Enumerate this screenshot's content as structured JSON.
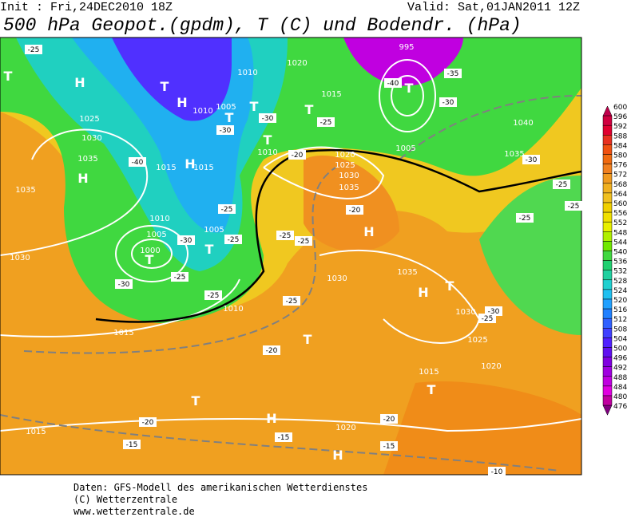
{
  "header": {
    "init": "Init : Fri,24DEC2010 18Z",
    "valid": "Valid: Sat,01JAN2011 12Z",
    "title": "500 hPa Geopot.(gpdm), T (C) und Bodendr. (hPa)"
  },
  "legend": {
    "levels": [
      600,
      596,
      592,
      588,
      584,
      580,
      576,
      572,
      568,
      564,
      560,
      556,
      552,
      548,
      544,
      540,
      536,
      532,
      528,
      524,
      520,
      516,
      512,
      508,
      504,
      500,
      496,
      492,
      488,
      484,
      480,
      476
    ],
    "colors": [
      "#c0004c",
      "#d00040",
      "#e00030",
      "#e83020",
      "#f05010",
      "#f06a10",
      "#f08020",
      "#f09a20",
      "#f0b020",
      "#f0c020",
      "#f0d000",
      "#f0e000",
      "#e8f000",
      "#b0f000",
      "#70e800",
      "#40d840",
      "#20d070",
      "#20d0a0",
      "#20d0d0",
      "#20c0f0",
      "#20a0ff",
      "#2080ff",
      "#3060ff",
      "#4040ff",
      "#5020ff",
      "#6010f0",
      "#8000e0",
      "#a000e0",
      "#c000e0",
      "#e000e0",
      "#c000a0",
      "#800080"
    ]
  },
  "map": {
    "centers": [
      "T",
      "H",
      "T",
      "H",
      "T",
      "T",
      "T",
      "T",
      "T",
      "H",
      "H",
      "T",
      "H",
      "H",
      "T",
      "T",
      "T",
      "T",
      "H",
      "H",
      "T"
    ],
    "isobars": [
      "1020",
      "1010",
      "1015",
      "1005",
      "1010",
      "1025",
      "1030",
      "1035",
      "1015",
      "1015",
      "1010",
      "1020",
      "1025",
      "1030",
      "1035",
      "1010",
      "1005",
      "1000",
      "1005",
      "1030",
      "1015",
      "1010",
      "1035",
      "1030",
      "1030",
      "1025",
      "1015",
      "1020",
      "1020",
      "1015",
      "1040",
      "1035",
      "995",
      "1005",
      "1035"
    ],
    "isotherms": [
      "-25",
      "-40",
      "-30",
      "-30",
      "-25",
      "-20",
      "-25",
      "-25",
      "-30",
      "-25",
      "-30",
      "-25",
      "-25",
      "-25",
      "-20",
      "-25",
      "-20",
      "-20",
      "-15",
      "-15",
      "-20",
      "-15",
      "-10",
      "-40",
      "-35",
      "-30",
      "-30",
      "-25",
      "-25",
      "-25",
      "-30",
      "-25"
    ]
  },
  "footer": [
    "Daten: GFS-Modell des amerikanischen Wetterdienstes",
    "(C) Wetterzentrale",
    "www.wetterzentrale.de"
  ]
}
